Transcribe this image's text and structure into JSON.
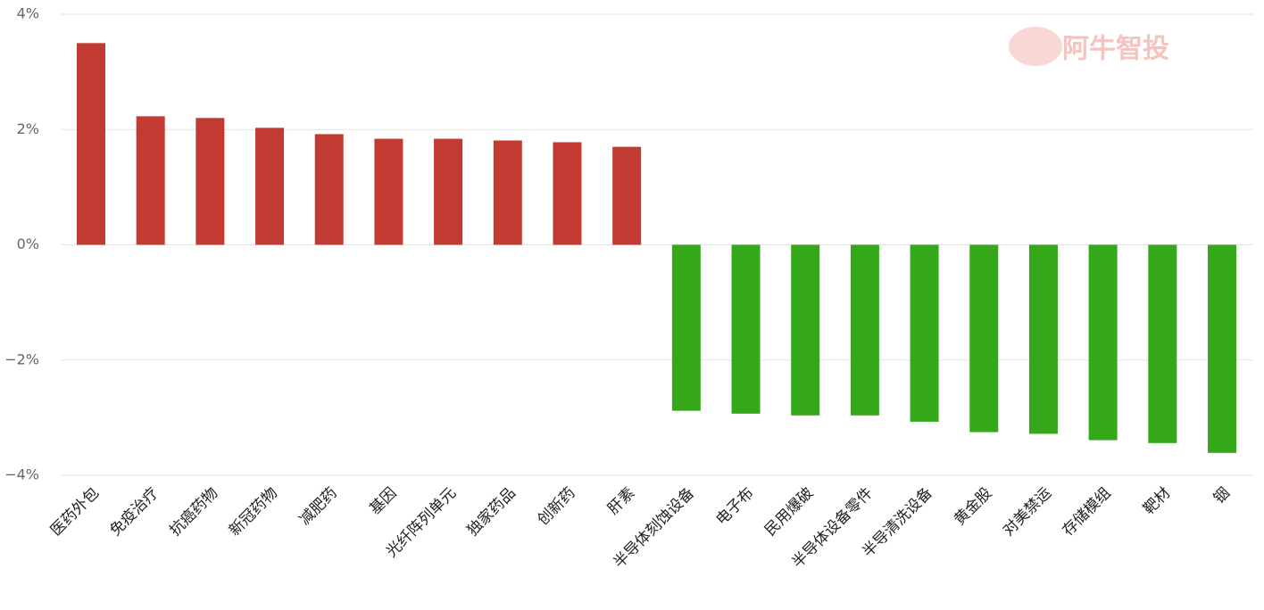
{
  "chart_data": {
    "type": "bar",
    "watermark": "阿牛智投",
    "categories": [
      "医药外包",
      "免疫治疗",
      "抗癌药物",
      "新冠药物",
      "减肥药",
      "基因",
      "光纤阵列单元",
      "独家药品",
      "创新药",
      "肝素",
      "半导体刻蚀设备",
      "电子布",
      "民用爆破",
      "半导体设备零件",
      "半导清洗设备",
      "黄金股",
      "对美禁运",
      "存储模组",
      "靶材",
      "铟"
    ],
    "values": [
      3.5,
      2.23,
      2.2,
      2.03,
      1.92,
      1.84,
      1.84,
      1.81,
      1.78,
      1.7,
      -2.88,
      -2.93,
      -2.96,
      -2.96,
      -3.07,
      -3.25,
      -3.28,
      -3.39,
      -3.44,
      -3.61
    ],
    "positive_color": "#c23b33",
    "negative_color": "#34a818",
    "ylim": [
      -4,
      4
    ],
    "yticks": [
      {
        "value": 4,
        "label": "4%"
      },
      {
        "value": 2,
        "label": "2%"
      },
      {
        "value": 0,
        "label": "0%"
      },
      {
        "value": -2,
        "label": "−2%"
      },
      {
        "value": -4,
        "label": "−4%"
      }
    ],
    "grid": true
  }
}
